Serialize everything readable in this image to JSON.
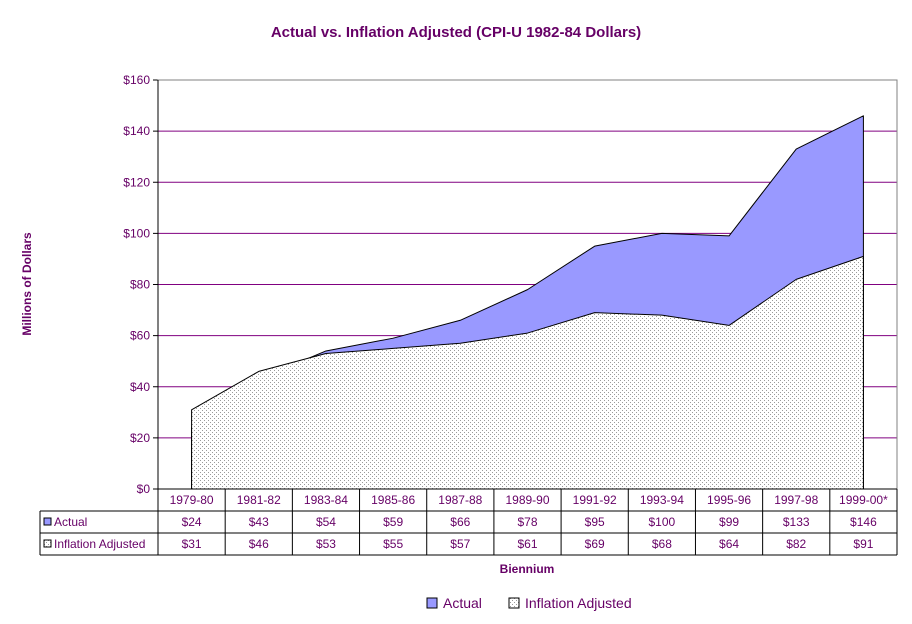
{
  "chart_data": {
    "type": "area",
    "title": "Actual vs. Inflation Adjusted (CPI-U 1982-84 Dollars)",
    "xlabel": "Biennium",
    "ylabel": "Millions of Dollars",
    "ylim": [
      0,
      160
    ],
    "yticks": [
      "$0",
      "$20",
      "$40",
      "$60",
      "$80",
      "$100",
      "$120",
      "$140",
      "$160"
    ],
    "grid": true,
    "legend": "bottom",
    "categories": [
      "1979-80",
      "1981-82",
      "1983-84",
      "1985-86",
      "1987-88",
      "1989-90",
      "1991-92",
      "1993-94",
      "1995-96",
      "1997-98",
      "1999-00*"
    ],
    "series": [
      {
        "name": "Actual",
        "color": "#9999ff",
        "values": [
          24,
          43,
          54,
          59,
          66,
          78,
          95,
          100,
          99,
          133,
          146
        ],
        "labels": [
          "$24",
          "$43",
          "$54",
          "$59",
          "$66",
          "$78",
          "$95",
          "$100",
          "$99",
          "$133",
          "$146"
        ]
      },
      {
        "name": "Inflation Adjusted",
        "color": "#c0c0c0",
        "values": [
          31,
          46,
          53,
          55,
          57,
          61,
          69,
          68,
          64,
          82,
          91
        ],
        "labels": [
          "$31",
          "$46",
          "$53",
          "$55",
          "$57",
          "$61",
          "$69",
          "$68",
          "$64",
          "$82",
          "$91"
        ]
      }
    ]
  }
}
